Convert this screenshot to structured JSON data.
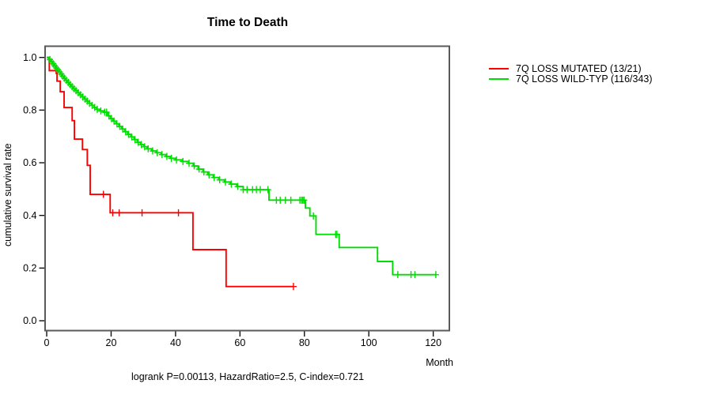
{
  "title": "Time to Death",
  "footer": "logrank P=0.00113, HazardRatio=2.5, C-index=0.721",
  "y_axis": {
    "label": "cumulative survival rate",
    "tick_labels": [
      "0.0",
      "0.2",
      "0.4",
      "0.6",
      "0.8",
      "1.0"
    ]
  },
  "x_axis": {
    "label": "Month",
    "tick_labels": [
      "0",
      "20",
      "40",
      "60",
      "80",
      "100",
      "120"
    ]
  },
  "legend": [
    {
      "label": "7Q LOSS MUTATED (13/21)",
      "color": "#ff0000"
    },
    {
      "label": "7Q LOSS WILD-TYP (116/343)",
      "color": "#00dd00"
    }
  ],
  "colors": {
    "box_border": "#5a5a5a",
    "tick": "#111111",
    "mutated": "#ff0000",
    "wildtype": "#00dd00"
  },
  "chart_data": {
    "type": "line",
    "subtype": "kaplan-meier-step",
    "title": "Time to Death",
    "xlabel": "Month",
    "ylabel": "cumulative survival rate",
    "annotation": "logrank P=0.00113, HazardRatio=2.5, C-index=0.721",
    "xlim": [
      -0.5,
      125
    ],
    "ylim": [
      -0.0375,
      1.0426
    ],
    "x_ticks": [
      0,
      20,
      40,
      60,
      80,
      100,
      120
    ],
    "y_ticks": [
      0.0,
      0.2,
      0.4,
      0.6,
      0.8,
      1.0
    ],
    "grid": false,
    "legend_position": "right-outside",
    "series": [
      {
        "name": "7Q LOSS MUTATED (13/21)",
        "color": "#ff0000",
        "n_events": "13/21",
        "end_month": 76.6,
        "points": [
          [
            0,
            1.0
          ],
          [
            0.8,
            0.95
          ],
          [
            3.2,
            0.91
          ],
          [
            4.2,
            0.87
          ],
          [
            5.4,
            0.81
          ],
          [
            7.9,
            0.76
          ],
          [
            8.6,
            0.69
          ],
          [
            11.1,
            0.65
          ],
          [
            12.6,
            0.59
          ],
          [
            13.5,
            0.48
          ],
          [
            19.7,
            0.41
          ],
          [
            45.4,
            0.27
          ],
          [
            55.7,
            0.13
          ]
        ],
        "censor_months": [
          2.9,
          17.6,
          20.5,
          22.5,
          29.6,
          40.9,
          76.6
        ]
      },
      {
        "name": "7Q LOSS WILD-TYP (116/343)",
        "color": "#00dd00",
        "n_events": "116/343",
        "end_month": 121,
        "points": [
          [
            0,
            1.0
          ],
          [
            0.6,
            0.992
          ],
          [
            1.1,
            0.984
          ],
          [
            1.6,
            0.976
          ],
          [
            2.1,
            0.968
          ],
          [
            2.6,
            0.96
          ],
          [
            3.1,
            0.953
          ],
          [
            3.6,
            0.945
          ],
          [
            4.1,
            0.937
          ],
          [
            4.7,
            0.929
          ],
          [
            5.3,
            0.921
          ],
          [
            5.9,
            0.913
          ],
          [
            6.5,
            0.905
          ],
          [
            7.1,
            0.897
          ],
          [
            7.7,
            0.889
          ],
          [
            8.3,
            0.881
          ],
          [
            8.9,
            0.874
          ],
          [
            9.6,
            0.866
          ],
          [
            10.3,
            0.858
          ],
          [
            11,
            0.85
          ],
          [
            11.7,
            0.842
          ],
          [
            12.4,
            0.834
          ],
          [
            13.1,
            0.826
          ],
          [
            13.9,
            0.818
          ],
          [
            14.7,
            0.81
          ],
          [
            15.5,
            0.803
          ],
          [
            16.5,
            0.797
          ],
          [
            17.7,
            0.792
          ],
          [
            19,
            0.778
          ],
          [
            19.8,
            0.768
          ],
          [
            20.6,
            0.758
          ],
          [
            21.5,
            0.748
          ],
          [
            22.4,
            0.738
          ],
          [
            23.3,
            0.728
          ],
          [
            24.2,
            0.718
          ],
          [
            25.1,
            0.708
          ],
          [
            26.1,
            0.698
          ],
          [
            27.1,
            0.688
          ],
          [
            28.1,
            0.678
          ],
          [
            29.1,
            0.669
          ],
          [
            30.1,
            0.661
          ],
          [
            31.2,
            0.653
          ],
          [
            32.6,
            0.645
          ],
          [
            34,
            0.638
          ],
          [
            35.5,
            0.631
          ],
          [
            37,
            0.624
          ],
          [
            38.4,
            0.617
          ],
          [
            40,
            0.611
          ],
          [
            42,
            0.605
          ],
          [
            44,
            0.598
          ],
          [
            45.5,
            0.588
          ],
          [
            47,
            0.576
          ],
          [
            48.5,
            0.565
          ],
          [
            50,
            0.554
          ],
          [
            51.7,
            0.544
          ],
          [
            53.4,
            0.535
          ],
          [
            55.2,
            0.527
          ],
          [
            57,
            0.519
          ],
          [
            59,
            0.51
          ],
          [
            61,
            0.498
          ],
          [
            69,
            0.458
          ],
          [
            80.3,
            0.428
          ],
          [
            81.7,
            0.398
          ],
          [
            83.6,
            0.328
          ],
          [
            90.8,
            0.278
          ],
          [
            102.7,
            0.225
          ],
          [
            107.4,
            0.175
          ]
        ],
        "censor_months": [
          1,
          1.5,
          2,
          2.5,
          3,
          3.5,
          4,
          4.5,
          5,
          5.5,
          6.1,
          6.7,
          7.3,
          7.9,
          8.5,
          9.1,
          9.8,
          10.5,
          11.2,
          11.9,
          12.6,
          13.3,
          14.1,
          14.9,
          15.7,
          16.8,
          18,
          18.6,
          19.3,
          20.1,
          20.9,
          21.8,
          22.7,
          23.6,
          24.5,
          25.4,
          26.4,
          27.4,
          28.4,
          29.4,
          30.4,
          31.5,
          32.9,
          34.3,
          35.8,
          37.3,
          38.7,
          40.3,
          42.3,
          44.2,
          45.8,
          47.3,
          48.8,
          50.4,
          52,
          53.7,
          55.5,
          57.3,
          59.3,
          61,
          62.2,
          63.9,
          65.1,
          66.3,
          68.7,
          71.3,
          72.5,
          74.1,
          75.8,
          78.6,
          79.1,
          79.5,
          79.9,
          82.8,
          89.7,
          90.1,
          109,
          113.1,
          114.3,
          120.8
        ]
      }
    ]
  }
}
